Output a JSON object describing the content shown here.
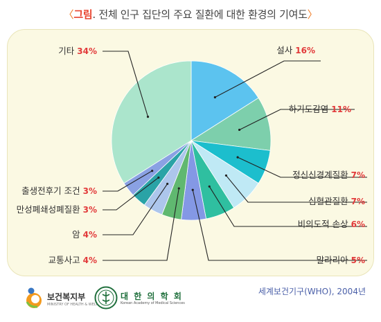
{
  "title": {
    "open": "〈",
    "keyword": "그림",
    "text": ". 전체 인구 집단의 주요 질환에 대한 환경의 기여도",
    "close": "〉"
  },
  "source": "세계보건기구(WHO), 2004년",
  "logos": {
    "mohw": {
      "name": "보건복지부",
      "sub": "MINISTRY OF HEALTH & WELFARE"
    },
    "nas": {
      "name": "대 한 의 학 회",
      "sub": "Korean Academy of Medical Sciences"
    }
  },
  "chart_data": {
    "type": "pie",
    "start": "12 o'clock, clockwise",
    "slices": [
      {
        "label": "설사",
        "pct_label": "16%",
        "value": 16,
        "color": "#5cc3ef"
      },
      {
        "label": "하기도감염",
        "pct_label": "11%",
        "value": 11,
        "color": "#7dcfac"
      },
      {
        "label": "정신신경계질환",
        "pct_label": "7%",
        "value": 7,
        "color": "#1cbecd"
      },
      {
        "label": "심혈관질환",
        "pct_label": "7%",
        "value": 7,
        "color": "#bfe9f5"
      },
      {
        "label": "비의도적 손상",
        "pct_label": "6%",
        "value": 6,
        "color": "#2fbfa0"
      },
      {
        "label": "말라리아",
        "pct_label": "5%",
        "value": 5,
        "color": "#8498e5"
      },
      {
        "label": "교통사고",
        "pct_label": "4%",
        "value": 4,
        "color": "#60b870"
      },
      {
        "label": "암",
        "pct_label": "4%",
        "value": 4,
        "color": "#adc6ec"
      },
      {
        "label": "만성폐쇄성폐질환",
        "pct_label": "3%",
        "value": 3,
        "color": "#2aa3a6"
      },
      {
        "label": "출생전후기 조건",
        "pct_label": "3%",
        "value": 3,
        "color": "#8aa1e3"
      },
      {
        "label": "기타",
        "pct_label": "34%",
        "value": 34,
        "color": "#abe5cc"
      }
    ]
  }
}
